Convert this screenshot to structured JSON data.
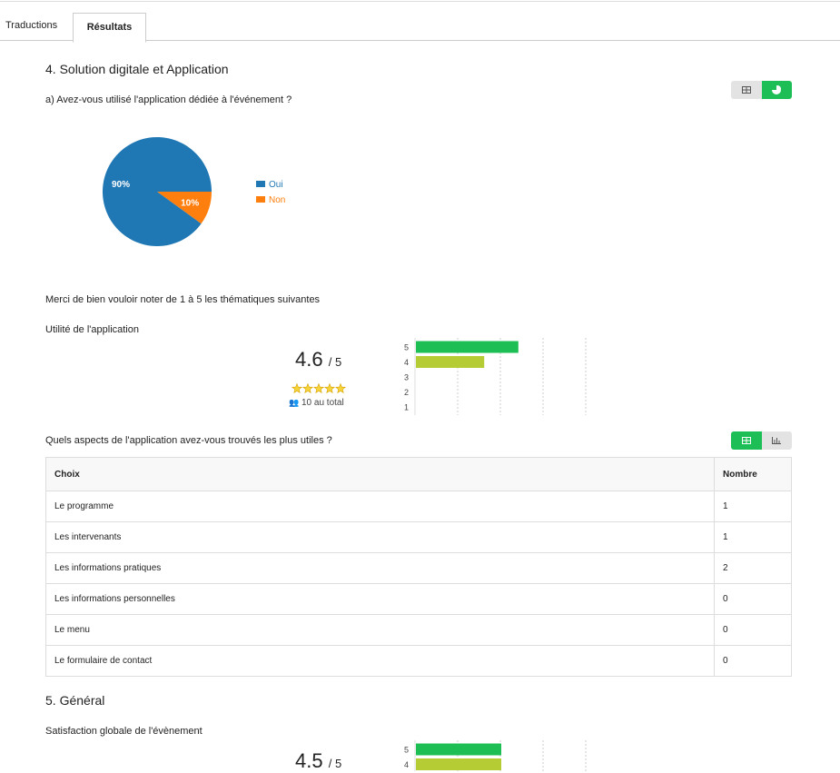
{
  "tabs": [
    "Traductions",
    "Résultats"
  ],
  "section_1": {
    "title": "4. Solution digitale et Application",
    "question": "a) Avez-vous utilisé l'application dédiée à l'événement ?",
    "pie": {
      "type": "pie",
      "categories": [
        "Oui",
        "Non"
      ],
      "values": [
        90,
        10
      ],
      "value_labels": [
        "90%",
        "10%"
      ],
      "colors": [
        "#1f77b4",
        "#ff7f0e"
      ]
    },
    "rating_intro": "Merci de bien vouloir noter de 1 à 5 les thématiques suivantes",
    "rating": {
      "label": "Utilité de l'application",
      "score": 4.6,
      "out_of": "/ 5",
      "total": "10 au total",
      "bars": {
        "type": "bar",
        "categories": [
          "5",
          "4",
          "3",
          "2",
          "1"
        ],
        "values": [
          6,
          4,
          0,
          0,
          0
        ],
        "colors": [
          "#1dbf55",
          "#b5cc34"
        ],
        "xlim": [
          0,
          10
        ],
        "xgrid": [
          0,
          2.5,
          5,
          7.5,
          10
        ]
      }
    },
    "table": {
      "question": "Quels aspects de l'application avez-vous trouvés les plus utiles ?",
      "header": [
        "Choix",
        "Nombre"
      ],
      "rows": [
        [
          "Le programme",
          1
        ],
        [
          "Les intervenants",
          1
        ],
        [
          "Les informations pratiques",
          2
        ],
        [
          "Les informations personnelles",
          0
        ],
        [
          "Le menu",
          0
        ],
        [
          "Le formulaire de contact",
          0
        ]
      ]
    }
  },
  "section_2": {
    "title": "5. Général",
    "rating": {
      "label": "Satisfaction globale de l'évènement",
      "score": 4.5,
      "out_of": "/ 5",
      "bars": {
        "type": "bar",
        "categories": [
          "5",
          "4"
        ],
        "values": [
          5,
          5
        ],
        "colors": [
          "#1dbf55",
          "#b5cc34"
        ],
        "xlim": [
          0,
          10
        ],
        "xgrid": [
          0,
          2.5,
          5,
          7.5,
          10
        ]
      }
    }
  }
}
